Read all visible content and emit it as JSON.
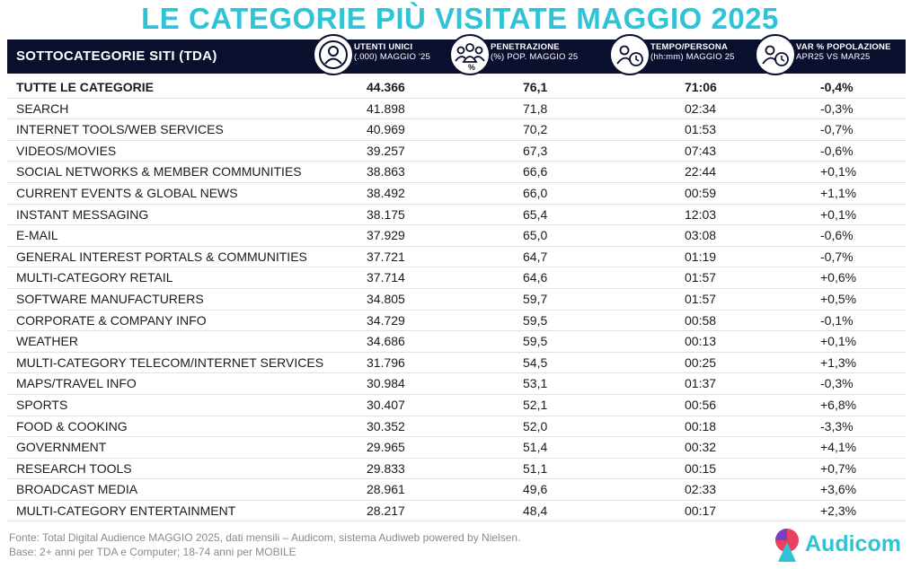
{
  "title": "LE CATEGORIE PIÙ VISITATE MAGGIO 2025",
  "header": {
    "category": "SOTTOCATEGORIE SITI  (TDA)",
    "users": {
      "line1": "UTENTI UNICI",
      "line2": "(.000) MAGGIO '25"
    },
    "penetration": {
      "line1": "PENETRAZIONE",
      "line2": "(%) POP. MAGGIO 25",
      "icon_mark": "%"
    },
    "time": {
      "line1": "TEMPO/PERSONA",
      "line2": "(hh:mm) MAGGIO 25"
    },
    "variation": {
      "line1": "VAR % POPOLAZIONE",
      "line2": "APR25 VS MAR25"
    }
  },
  "icons": {
    "users": "user-icon",
    "penetration": "group-icon",
    "time": "person-clock-icon",
    "variation": "person-clock-icon"
  },
  "colors": {
    "accent": "#2ec4d6",
    "header_bg": "#0a0f2e"
  },
  "rows": [
    {
      "name": "TUTTE LE CATEGORIE",
      "users": "44.366",
      "penetration": "76,1",
      "time": "71:06",
      "variation": "-0,4%",
      "total": true
    },
    {
      "name": "SEARCH",
      "users": "41.898",
      "penetration": "71,8",
      "time": "02:34",
      "variation": "-0,3%"
    },
    {
      "name": "INTERNET TOOLS/WEB SERVICES",
      "users": "40.969",
      "penetration": "70,2",
      "time": "01:53",
      "variation": "-0,7%"
    },
    {
      "name": "VIDEOS/MOVIES",
      "users": "39.257",
      "penetration": "67,3",
      "time": "07:43",
      "variation": "-0,6%"
    },
    {
      "name": "SOCIAL NETWORKS & MEMBER COMMUNITIES",
      "users": "38.863",
      "penetration": "66,6",
      "time": "22:44",
      "variation": "+0,1%"
    },
    {
      "name": "CURRENT EVENTS & GLOBAL NEWS",
      "users": "38.492",
      "penetration": "66,0",
      "time": "00:59",
      "variation": "+1,1%"
    },
    {
      "name": "INSTANT MESSAGING",
      "users": "38.175",
      "penetration": "65,4",
      "time": "12:03",
      "variation": "+0,1%"
    },
    {
      "name": "E-MAIL",
      "users": "37.929",
      "penetration": "65,0",
      "time": "03:08",
      "variation": "-0,6%"
    },
    {
      "name": "GENERAL INTEREST PORTALS & COMMUNITIES",
      "users": "37.721",
      "penetration": "64,7",
      "time": "01:19",
      "variation": "-0,7%"
    },
    {
      "name": "MULTI-CATEGORY RETAIL",
      "users": "37.714",
      "penetration": "64,6",
      "time": "01:57",
      "variation": "+0,6%"
    },
    {
      "name": "SOFTWARE MANUFACTURERS",
      "users": "34.805",
      "penetration": "59,7",
      "time": "01:57",
      "variation": "+0,5%"
    },
    {
      "name": "CORPORATE & COMPANY INFO",
      "users": "34.729",
      "penetration": "59,5",
      "time": "00:58",
      "variation": "-0,1%"
    },
    {
      "name": "WEATHER",
      "users": "34.686",
      "penetration": "59,5",
      "time": "00:13",
      "variation": "+0,1%"
    },
    {
      "name": "MULTI-CATEGORY TELECOM/INTERNET SERVICES",
      "users": "31.796",
      "penetration": "54,5",
      "time": "00:25",
      "variation": "+1,3%"
    },
    {
      "name": "MAPS/TRAVEL INFO",
      "users": "30.984",
      "penetration": "53,1",
      "time": "01:37",
      "variation": "-0,3%"
    },
    {
      "name": "SPORTS",
      "users": "30.407",
      "penetration": "52,1",
      "time": "00:56",
      "variation": "+6,8%"
    },
    {
      "name": "FOOD & COOKING",
      "users": "30.352",
      "penetration": "52,0",
      "time": "00:18",
      "variation": "-3,3%"
    },
    {
      "name": "GOVERNMENT",
      "users": "29.965",
      "penetration": "51,4",
      "time": "00:32",
      "variation": "+4,1%"
    },
    {
      "name": "RESEARCH TOOLS",
      "users": "29.833",
      "penetration": "51,1",
      "time": "00:15",
      "variation": "+0,7%"
    },
    {
      "name": "BROADCAST MEDIA",
      "users": "28.961",
      "penetration": "49,6",
      "time": "02:33",
      "variation": "+3,6%"
    },
    {
      "name": "MULTI-CATEGORY ENTERTAINMENT",
      "users": "28.217",
      "penetration": "48,4",
      "time": "00:17",
      "variation": "+2,3%"
    }
  ],
  "footer": {
    "source": "Fonte: Total Digital Audience MAGGIO 2025, dati mensili – Audicom, sistema Audiweb powered by Nielsen.",
    "base": "Base: 2+ anni per TDA e Computer; 18-74 anni per MOBILE"
  },
  "brand": {
    "name": "Audicom",
    "icon": "audicom-logo-icon"
  }
}
